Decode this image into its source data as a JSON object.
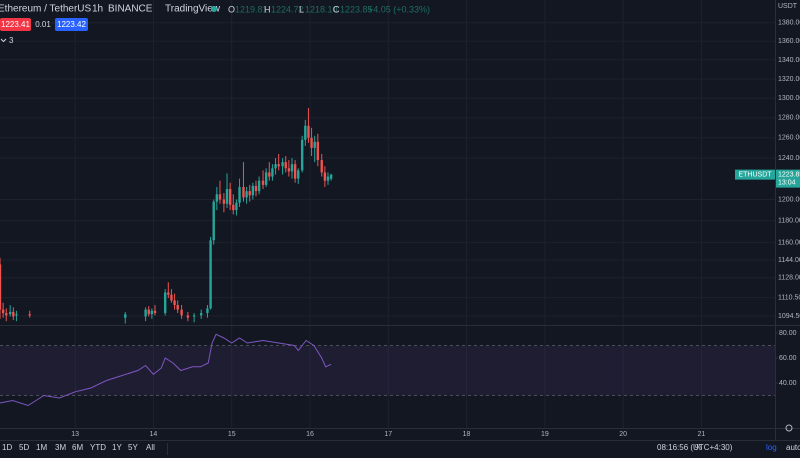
{
  "header": {
    "symbol": "Ethereum / TetherUS",
    "interval": "1h",
    "exchange": "BINANCE",
    "source": "TradingView",
    "o_label": "O",
    "o": "1219.81",
    "h_label": "H",
    "h": "1224.72",
    "l_label": "L",
    "l": "1218.10",
    "c_label": "C",
    "c": "1223.85",
    "change": "+4.05 (+0.33%)",
    "sell": "1223.41",
    "spread": "0.01",
    "buy": "1223.42",
    "indicators": "3",
    "currency": "USDT"
  },
  "chart_data": [
    {
      "type": "candlestick",
      "log_scale": true,
      "grid": true,
      "up_color": "#26a69a",
      "down_color": "#ef5350",
      "xlim": [
        12.04,
        21.94
      ],
      "ylim": [
        1086.7,
        1405
      ],
      "yticks": [
        {
          "value": 1094.5,
          "label": "1094.50"
        },
        {
          "value": 1110.5,
          "label": "1110.50"
        },
        {
          "value": 1128,
          "label": "1128.00"
        },
        {
          "value": 1144,
          "label": "1144.00"
        },
        {
          "value": 1160,
          "label": "1160.00"
        },
        {
          "value": 1180,
          "label": "1180.00"
        },
        {
          "value": 1200,
          "label": "1200.00"
        },
        {
          "value": 1240,
          "label": "1240.00"
        },
        {
          "value": 1260,
          "label": "1260.00"
        },
        {
          "value": 1280,
          "label": "1280.00"
        },
        {
          "value": 1300,
          "label": "1300.00"
        },
        {
          "value": 1320,
          "label": "1320.00"
        },
        {
          "value": 1340,
          "label": "1340.00"
        },
        {
          "value": 1360,
          "label": "1360.00"
        },
        {
          "value": 1380,
          "label": "1380.00"
        }
      ],
      "x": [
        12.04,
        12.08,
        12.12,
        12.17,
        12.21,
        12.25,
        12.42,
        13.64,
        13.9,
        13.94,
        13.98,
        14.02,
        14.15,
        14.19,
        14.23,
        14.27,
        14.31,
        14.36,
        14.44,
        14.52,
        14.61,
        14.69,
        14.73,
        14.77,
        14.81,
        14.85,
        14.9,
        14.94,
        14.98,
        15.02,
        15.06,
        15.1,
        15.15,
        15.19,
        15.23,
        15.27,
        15.31,
        15.35,
        15.4,
        15.44,
        15.48,
        15.52,
        15.56,
        15.6,
        15.65,
        15.69,
        15.73,
        15.77,
        15.81,
        15.85,
        15.9,
        15.94,
        15.98,
        16.02,
        16.06,
        16.1,
        16.15,
        16.19,
        16.23,
        16.27
      ],
      "ohlc": [
        [
          1140,
          1146,
          1092,
          1100
        ],
        [
          1100,
          1106,
          1093,
          1097
        ],
        [
          1097,
          1101,
          1090,
          1095
        ],
        [
          1096,
          1104,
          1094,
          1098
        ],
        [
          1098,
          1102,
          1091,
          1094
        ],
        [
          1095,
          1099,
          1090,
          1096
        ],
        [
          1096,
          1099,
          1093,
          1095
        ],
        [
          1093,
          1098,
          1088,
          1096
        ],
        [
          1094,
          1102,
          1090,
          1100
        ],
        [
          1100,
          1103,
          1094,
          1096
        ],
        [
          1096,
          1101,
          1092,
          1099
        ],
        [
          1099,
          1104,
          1095,
          1097
        ],
        [
          1097,
          1118,
          1095,
          1115
        ],
        [
          1115,
          1124,
          1110,
          1113
        ],
        [
          1113,
          1118,
          1106,
          1108
        ],
        [
          1108,
          1114,
          1100,
          1104
        ],
        [
          1104,
          1108,
          1097,
          1100
        ],
        [
          1100,
          1104,
          1092,
          1095
        ],
        [
          1095,
          1098,
          1090,
          1093
        ],
        [
          1094,
          1097,
          1089,
          1095
        ],
        [
          1095,
          1100,
          1092,
          1097
        ],
        [
          1097,
          1104,
          1093,
          1101
        ],
        [
          1101,
          1165,
          1100,
          1162
        ],
        [
          1162,
          1200,
          1158,
          1198
        ],
        [
          1198,
          1212,
          1190,
          1205
        ],
        [
          1205,
          1218,
          1196,
          1200
        ],
        [
          1200,
          1206,
          1188,
          1196
        ],
        [
          1196,
          1225,
          1192,
          1210
        ],
        [
          1210,
          1216,
          1190,
          1195
        ],
        [
          1195,
          1205,
          1186,
          1190
        ],
        [
          1190,
          1200,
          1185,
          1197
        ],
        [
          1197,
          1220,
          1193,
          1212
        ],
        [
          1212,
          1236,
          1198,
          1202
        ],
        [
          1202,
          1212,
          1196,
          1208
        ],
        [
          1208,
          1214,
          1198,
          1204
        ],
        [
          1204,
          1216,
          1200,
          1213
        ],
        [
          1213,
          1218,
          1203,
          1208
        ],
        [
          1208,
          1222,
          1205,
          1218
        ],
        [
          1218,
          1228,
          1210,
          1214
        ],
        [
          1214,
          1230,
          1212,
          1226
        ],
        [
          1226,
          1236,
          1218,
          1222
        ],
        [
          1222,
          1234,
          1218,
          1230
        ],
        [
          1230,
          1240,
          1224,
          1234
        ],
        [
          1234,
          1244,
          1228,
          1232
        ],
        [
          1232,
          1240,
          1224,
          1236
        ],
        [
          1236,
          1242,
          1226,
          1230
        ],
        [
          1230,
          1238,
          1222,
          1227
        ],
        [
          1227,
          1240,
          1220,
          1234
        ],
        [
          1234,
          1238,
          1216,
          1220
        ],
        [
          1220,
          1230,
          1215,
          1228
        ],
        [
          1228,
          1262,
          1226,
          1258
        ],
        [
          1258,
          1278,
          1252,
          1272
        ],
        [
          1272,
          1290,
          1255,
          1260
        ],
        [
          1260,
          1270,
          1242,
          1250
        ],
        [
          1250,
          1262,
          1236,
          1256
        ],
        [
          1256,
          1264,
          1232,
          1238
        ],
        [
          1238,
          1244,
          1222,
          1226
        ],
        [
          1226,
          1232,
          1212,
          1218
        ],
        [
          1218,
          1226,
          1214,
          1222
        ],
        [
          1219.81,
          1224.72,
          1218.1,
          1223.85
        ]
      ],
      "symbol_tag": "ETHUSDT",
      "last_price": 1223.85,
      "countdown": "13:04"
    },
    {
      "type": "line",
      "color": "#7e57c2",
      "band": [
        30,
        70
      ],
      "xlim": [
        12.04,
        21.94
      ],
      "ylim": [
        4,
        86.4
      ],
      "yticks": [
        {
          "value": 40,
          "label": "40.00"
        },
        {
          "value": 60,
          "label": "60.00"
        },
        {
          "value": 80,
          "label": "80.00"
        }
      ],
      "xticks": [
        13,
        14,
        15,
        16,
        17,
        18,
        19,
        20,
        21
      ],
      "x": [
        12.04,
        12.2,
        12.4,
        12.6,
        12.8,
        13.0,
        13.2,
        13.4,
        13.6,
        13.8,
        13.9,
        14.0,
        14.1,
        14.15,
        14.25,
        14.35,
        14.5,
        14.6,
        14.7,
        14.75,
        14.8,
        14.9,
        15.0,
        15.1,
        15.2,
        15.4,
        15.6,
        15.8,
        15.85,
        15.95,
        16.05,
        16.15,
        16.2,
        16.27
      ],
      "values": [
        24,
        26,
        22,
        30,
        28,
        33,
        36,
        42,
        46,
        50,
        54,
        47,
        52,
        60,
        56,
        50,
        53,
        53,
        56,
        72,
        79,
        76,
        72,
        76,
        72,
        74,
        72,
        70,
        66,
        74,
        70,
        60,
        53,
        55
      ]
    }
  ],
  "toolbar": {
    "ranges": [
      "1D",
      "5D",
      "1M",
      "3M",
      "6M",
      "YTD",
      "1Y",
      "5Y",
      "All"
    ],
    "clock": "08:16:56 (UTC+4:30)",
    "percent": "%",
    "log": "log",
    "auto": "auto"
  }
}
